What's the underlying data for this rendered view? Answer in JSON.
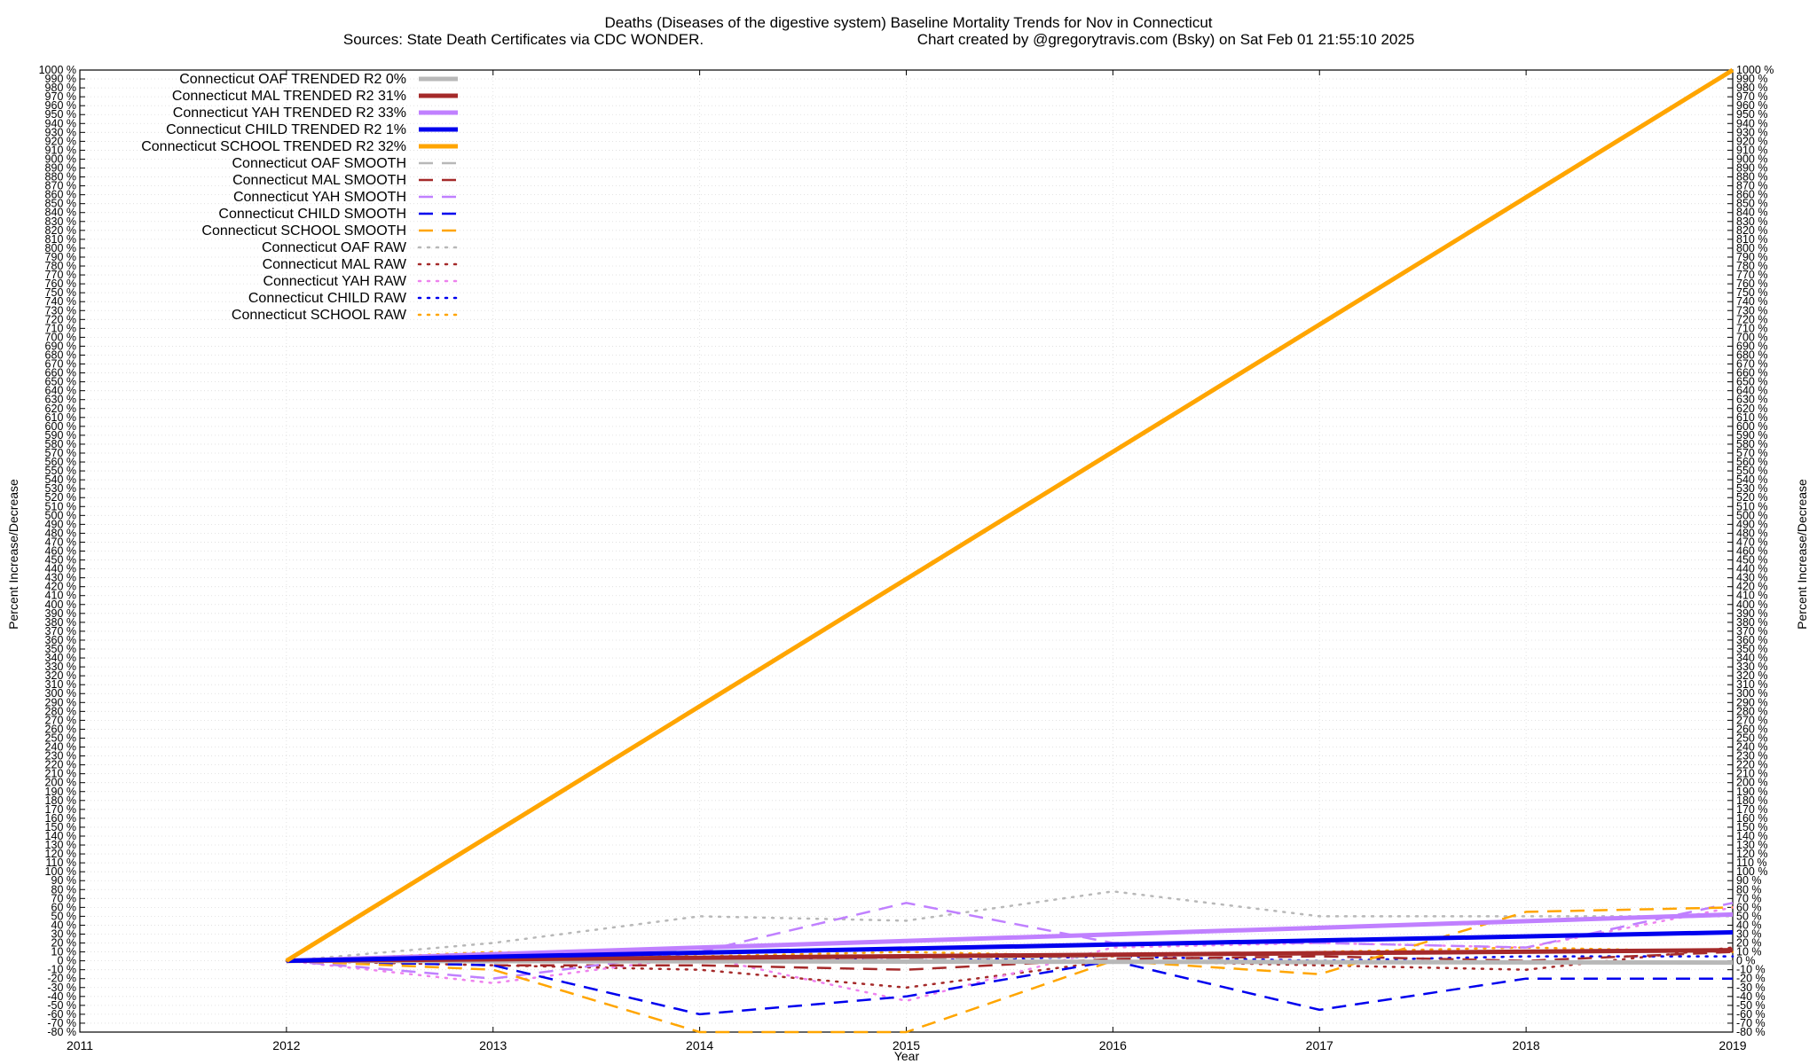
{
  "chart_data": {
    "type": "line",
    "title": "Deaths (Diseases of the digestive system)  Baseline Mortality Trends for Nov in Connecticut",
    "subtitle_left": "Sources: State Death Certificates via CDC WONDER.",
    "subtitle_right": "Chart created by @gregorytravis.com (Bsky) on Sat Feb 01 21:55:10 2025",
    "xlabel": "Year",
    "ylabel": "Percent Increase/Decrease",
    "ylabel_right": "Percent Increase/Decrease",
    "xlim": [
      2011,
      2019
    ],
    "ylim": [
      -80,
      1000
    ],
    "y_tick_step": 10,
    "y_tick_suffix": " %",
    "x_ticks": [
      2011,
      2012,
      2013,
      2014,
      2015,
      2016,
      2017,
      2018,
      2019
    ],
    "grid": true,
    "legend_position": "top-left",
    "series": [
      {
        "name": "Connecticut OAF TRENDED R2  0%",
        "color": "#b8b8b8",
        "style": "solid",
        "width": 5,
        "x": [
          2012,
          2019
        ],
        "y": [
          0,
          -2
        ]
      },
      {
        "name": "Connecticut MAL TRENDED R2  31%",
        "color": "#a52a2a",
        "style": "solid",
        "width": 5,
        "x": [
          2012,
          2019
        ],
        "y": [
          0,
          12
        ]
      },
      {
        "name": "Connecticut YAH TRENDED R2  33%",
        "color": "#c080ff",
        "style": "solid",
        "width": 5,
        "x": [
          2012,
          2019
        ],
        "y": [
          0,
          52
        ]
      },
      {
        "name": "Connecticut CHILD TRENDED R2  1%",
        "color": "#0000ee",
        "style": "solid",
        "width": 5,
        "x": [
          2012,
          2019
        ],
        "y": [
          0,
          32
        ]
      },
      {
        "name": "Connecticut SCHOOL TRENDED R2  32%",
        "color": "#ffa500",
        "style": "solid",
        "width": 5,
        "x": [
          2012,
          2019
        ],
        "y": [
          0,
          1000
        ]
      },
      {
        "name": "Connecticut OAF SMOOTH",
        "color": "#b8b8b8",
        "style": "dashed",
        "width": 2.5,
        "x": [
          2012,
          2013,
          2014,
          2015,
          2016,
          2017,
          2018,
          2019
        ],
        "y": [
          0,
          -2,
          3,
          2,
          5,
          -3,
          0,
          -2
        ]
      },
      {
        "name": "Connecticut MAL SMOOTH",
        "color": "#a52a2a",
        "style": "dashed",
        "width": 2.5,
        "x": [
          2012,
          2013,
          2014,
          2015,
          2016,
          2017,
          2018,
          2019
        ],
        "y": [
          0,
          -5,
          -5,
          -10,
          2,
          5,
          0,
          10
        ]
      },
      {
        "name": "Connecticut YAH SMOOTH",
        "color": "#c080ff",
        "style": "dashed",
        "width": 2.5,
        "x": [
          2012,
          2013,
          2014,
          2015,
          2016,
          2017,
          2018,
          2019
        ],
        "y": [
          0,
          -20,
          10,
          65,
          20,
          20,
          15,
          65
        ]
      },
      {
        "name": "Connecticut CHILD SMOOTH",
        "color": "#0000ee",
        "style": "dashed",
        "width": 2.5,
        "x": [
          2012,
          2013,
          2014,
          2015,
          2016,
          2017,
          2018,
          2019
        ],
        "y": [
          0,
          -5,
          -60,
          -40,
          0,
          -55,
          -20,
          -20
        ]
      },
      {
        "name": "Connecticut SCHOOL SMOOTH",
        "color": "#ffa500",
        "style": "dashed",
        "width": 2.5,
        "x": [
          2012,
          2013,
          2014,
          2015,
          2016,
          2017,
          2018,
          2019
        ],
        "y": [
          0,
          -10,
          -80,
          -80,
          0,
          -15,
          55,
          60
        ]
      },
      {
        "name": "Connecticut OAF RAW",
        "color": "#b8b8b8",
        "style": "dotted",
        "width": 2.5,
        "x": [
          2012,
          2013,
          2014,
          2015,
          2016,
          2017,
          2018,
          2019
        ],
        "y": [
          0,
          20,
          50,
          45,
          78,
          50,
          50,
          50
        ]
      },
      {
        "name": "Connecticut MAL RAW",
        "color": "#a52a2a",
        "style": "dotted",
        "width": 2.5,
        "x": [
          2012,
          2013,
          2014,
          2015,
          2016,
          2017,
          2018,
          2019
        ],
        "y": [
          0,
          -5,
          -10,
          -30,
          0,
          -5,
          -10,
          15
        ]
      },
      {
        "name": "Connecticut YAH RAW",
        "color": "#ee82ee",
        "style": "dotted",
        "width": 2.5,
        "x": [
          2012,
          2013,
          2014,
          2015,
          2016,
          2017,
          2018,
          2019
        ],
        "y": [
          0,
          -25,
          5,
          -45,
          15,
          20,
          15,
          60
        ]
      },
      {
        "name": "Connecticut CHILD RAW",
        "color": "#0000ee",
        "style": "dotted",
        "width": 2.5,
        "x": [
          2012,
          2013,
          2014,
          2015,
          2016,
          2017,
          2018,
          2019
        ],
        "y": [
          0,
          0,
          5,
          0,
          5,
          0,
          5,
          5
        ]
      },
      {
        "name": "Connecticut SCHOOL RAW",
        "color": "#ffa500",
        "style": "dotted",
        "width": 2.5,
        "x": [
          2012,
          2013,
          2014,
          2015,
          2016,
          2017,
          2018,
          2019
        ],
        "y": [
          0,
          10,
          5,
          10,
          5,
          10,
          15,
          10
        ]
      }
    ]
  }
}
